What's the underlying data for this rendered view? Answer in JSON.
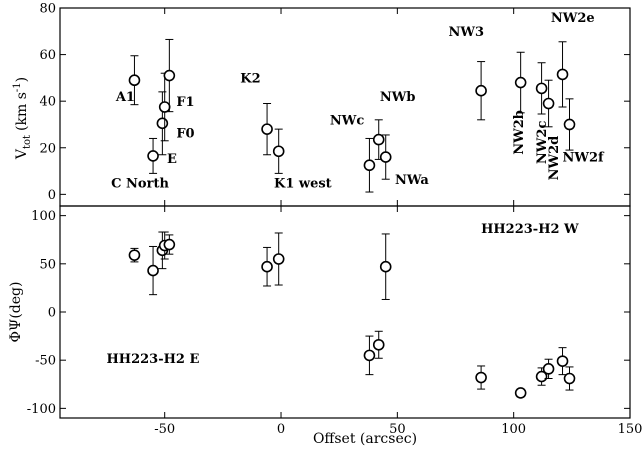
{
  "chart_data": [
    {
      "type": "scatter",
      "panel": "top",
      "ylabel_main": "V",
      "ylabel_sub": "tot",
      "ylabel_units": "(km s",
      "ylabel_exp": "-1",
      "ylabel_close": ")",
      "xlim": [
        -95,
        150
      ],
      "ylim": [
        -5,
        80
      ],
      "yticks": [
        0,
        20,
        40,
        60,
        80
      ],
      "xticks": [
        -50,
        0,
        50,
        100,
        150
      ],
      "x_tick_labels_shown": false,
      "points": [
        {
          "x": -63,
          "y": 49,
          "err": 10.5
        },
        {
          "x": -55,
          "y": 16.5,
          "err": 7.5
        },
        {
          "x": -51,
          "y": 30.5,
          "err": 13.5
        },
        {
          "x": -50,
          "y": 37.5,
          "err": 14.5
        },
        {
          "x": -48,
          "y": 51,
          "err": 15.5
        },
        {
          "x": -6,
          "y": 28,
          "err": 11
        },
        {
          "x": -1,
          "y": 18.5,
          "err": 9.5
        },
        {
          "x": 38,
          "y": 12.5,
          "err": 11.5
        },
        {
          "x": 42,
          "y": 23.5,
          "err": 8.5
        },
        {
          "x": 45,
          "y": 16,
          "err": 9.5
        },
        {
          "x": 86,
          "y": 44.5,
          "err": 12.5
        },
        {
          "x": 103,
          "y": 48,
          "err": 13
        },
        {
          "x": 112,
          "y": 45.5,
          "err": 11
        },
        {
          "x": 115,
          "y": 39,
          "err": 10
        },
        {
          "x": 121,
          "y": 51.5,
          "err": 14
        },
        {
          "x": 124,
          "y": 30,
          "err": 11
        }
      ],
      "annotations": [
        {
          "text": "A1",
          "x": -71,
          "y": 40,
          "rotate": false
        },
        {
          "text": "F1",
          "x": -45,
          "y": 38,
          "rotate": false
        },
        {
          "text": "F0",
          "x": -45,
          "y": 24.5,
          "rotate": false
        },
        {
          "text": "E",
          "x": -49,
          "y": 13.5,
          "rotate": false
        },
        {
          "text": "C North",
          "x": -73,
          "y": 3,
          "rotate": false
        },
        {
          "text": "K2",
          "x": -17.5,
          "y": 48,
          "rotate": false
        },
        {
          "text": "K1 west",
          "x": -3,
          "y": 3,
          "rotate": false
        },
        {
          "text": "NWc",
          "x": 21,
          "y": 30,
          "rotate": false
        },
        {
          "text": "NWb",
          "x": 42.5,
          "y": 40,
          "rotate": false
        },
        {
          "text": "NWa",
          "x": 49,
          "y": 4.5,
          "rotate": false
        },
        {
          "text": "NW3",
          "x": 72,
          "y": 68,
          "rotate": false
        },
        {
          "text": "NW2b",
          "x": 104,
          "y": 17,
          "rotate": true
        },
        {
          "text": "NW2c",
          "x": 114,
          "y": 13,
          "rotate": true
        },
        {
          "text": "NW2d",
          "x": 119,
          "y": 6,
          "rotate": true
        },
        {
          "text": "NW2e",
          "x": 116,
          "y": 74,
          "rotate": false
        },
        {
          "text": "NW2f",
          "x": 121,
          "y": 14,
          "rotate": false
        }
      ]
    },
    {
      "type": "scatter",
      "panel": "bottom",
      "ylabel": "ΦΨ(deg)",
      "xlabel": "Offset (arcsec)",
      "xlim": [
        -95,
        150
      ],
      "ylim": [
        -110,
        110
      ],
      "yticks": [
        -100,
        -50,
        0,
        50,
        100
      ],
      "xticks": [
        -50,
        0,
        50,
        100,
        150
      ],
      "x_tick_labels": [
        "-50",
        "0",
        "50",
        "100",
        "150"
      ],
      "points": [
        {
          "x": -63,
          "y": 59,
          "err": 7
        },
        {
          "x": -55,
          "y": 43,
          "err": 25
        },
        {
          "x": -51,
          "y": 64,
          "err": 19
        },
        {
          "x": -50,
          "y": 69,
          "err": 14
        },
        {
          "x": -48,
          "y": 70,
          "err": 10
        },
        {
          "x": -6,
          "y": 47,
          "err": 20
        },
        {
          "x": -1,
          "y": 55,
          "err": 27
        },
        {
          "x": 45,
          "y": 47,
          "err": 34
        },
        {
          "x": 38,
          "y": -45,
          "err": 20
        },
        {
          "x": 42,
          "y": -34,
          "err": 14
        },
        {
          "x": 86,
          "y": -68,
          "err": 12
        },
        {
          "x": 103,
          "y": -84,
          "err": 4
        },
        {
          "x": 112,
          "y": -67,
          "err": 9
        },
        {
          "x": 115,
          "y": -59,
          "err": 10
        },
        {
          "x": 121,
          "y": -51,
          "err": 14
        },
        {
          "x": 124,
          "y": -69,
          "err": 12
        }
      ],
      "annotations": [
        {
          "text": "HH223-H2 W",
          "x": 86,
          "y": 82,
          "rotate": false
        },
        {
          "text": "HH223-H2 E",
          "x": -75,
          "y": -53,
          "rotate": false
        }
      ]
    }
  ]
}
